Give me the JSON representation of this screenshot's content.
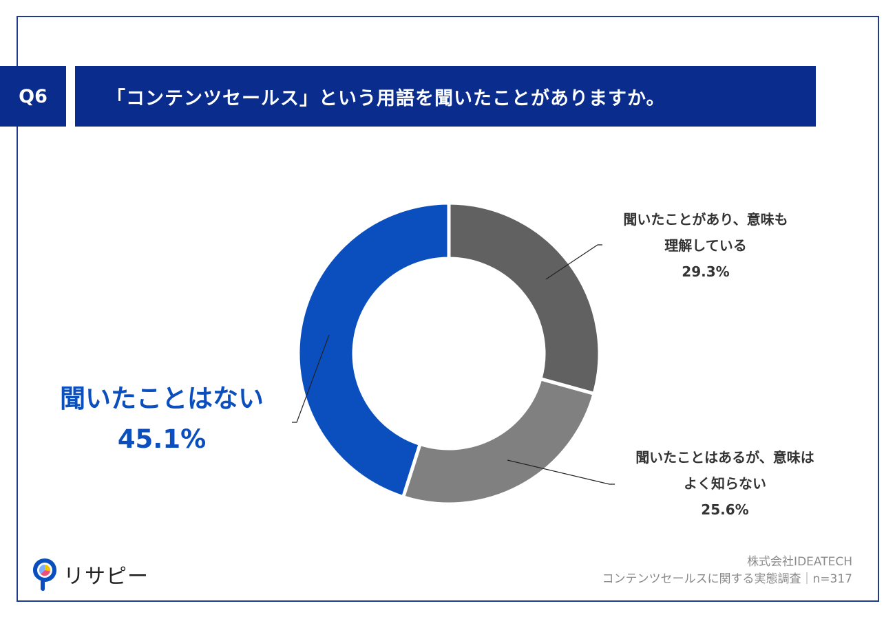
{
  "header": {
    "q_label": "Q6",
    "question": "「コンテンツセールス」という用語を聞いたことがありますか。"
  },
  "chart_data": {
    "type": "pie",
    "categories": [
      "聞いたことがあり、意味も理解している",
      "聞いたことはあるが、意味はよく知らない",
      "聞いたことはない"
    ],
    "values": [
      29.3,
      25.6,
      45.1
    ],
    "unit": "%",
    "colors": [
      "#616161",
      "#808080",
      "#0a4fbd"
    ],
    "labels": [
      {
        "line1": "聞いたことがあり、意味も",
        "line2": "理解している",
        "value": "29.3%"
      },
      {
        "line1": "聞いたことはあるが、意味は",
        "line2": "よく知らない",
        "value": "25.6%"
      },
      {
        "line1": "聞いたことはない",
        "value": "45.1%"
      }
    ]
  },
  "footer": {
    "company": "株式会社IDEATECH",
    "survey": "コンテンツセールスに関する実態調査｜n=317"
  },
  "logo": {
    "text": "リサピー",
    "icon": "pie-pin-icon"
  }
}
